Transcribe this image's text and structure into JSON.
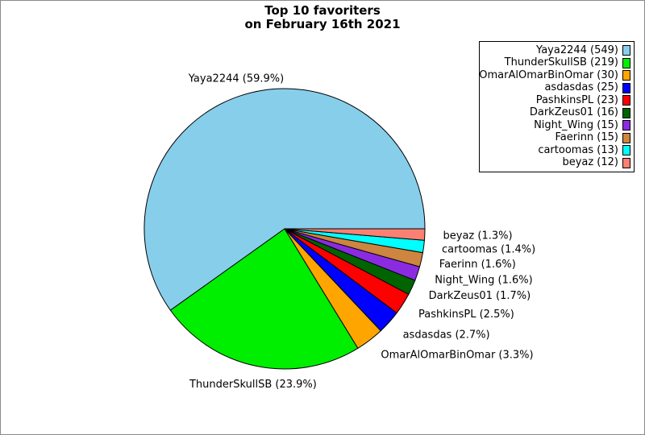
{
  "chart_data": {
    "type": "pie",
    "title": {
      "line1": "Top 10 favoriters",
      "line2": "on February 16th 2021"
    },
    "start_angle_deg": 0,
    "counterclockwise": true,
    "legend_position": "upper right",
    "slices": [
      {
        "label": "Yaya2244",
        "value": 549,
        "pct": "59.9%",
        "color": "#87CEEB"
      },
      {
        "label": "ThunderSkullSB",
        "value": 219,
        "pct": "23.9%",
        "color": "#00EE00"
      },
      {
        "label": "OmarAlOmarBinOmar",
        "value": 30,
        "pct": "3.3%",
        "color": "#FFA500"
      },
      {
        "label": "asdasdas",
        "value": 25,
        "pct": "2.7%",
        "color": "#0000FF"
      },
      {
        "label": "PashkinsPL",
        "value": 23,
        "pct": "2.5%",
        "color": "#FF0000"
      },
      {
        "label": "DarkZeus01",
        "value": 16,
        "pct": "1.7%",
        "color": "#006400"
      },
      {
        "label": "Night_Wing",
        "value": 15,
        "pct": "1.6%",
        "color": "#8A2BE2"
      },
      {
        "label": "Faerinn",
        "value": 15,
        "pct": "1.6%",
        "color": "#CD853F"
      },
      {
        "label": "cartoomas",
        "value": 13,
        "pct": "1.4%",
        "color": "#00FFFF"
      },
      {
        "label": "beyaz",
        "value": 12,
        "pct": "1.3%",
        "color": "#FA8072"
      }
    ],
    "colors": {
      "slice_edge": "#000000",
      "text": "#000000",
      "background": "#FFFFFF"
    }
  }
}
